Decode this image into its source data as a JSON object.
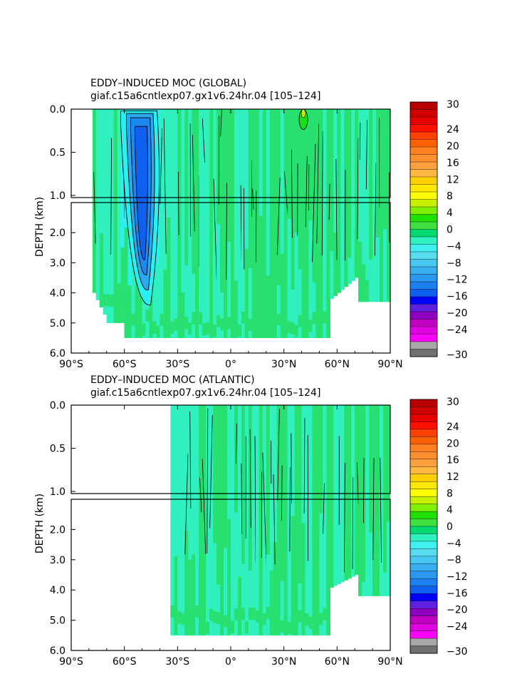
{
  "palette": {
    "deep_neg": [
      "#707070",
      "#a8a8a8",
      "#ff00ff",
      "#e000e0",
      "#c000c0",
      "#9000c0",
      "#6020e0",
      "#0000ff",
      "#1060f0",
      "#1c80f0",
      "#2a98f0",
      "#38b0f0",
      "#48c8f0",
      "#58dcf0",
      "#40f0f0",
      "#30f0c0"
    ],
    "pos": [
      "#00d870",
      "#40e040",
      "#20e000",
      "#80f000",
      "#c8f000",
      "#ffff00",
      "#ffe800",
      "#ffd000",
      "#ffb840",
      "#ffa040",
      "#ff9030",
      "#ff8020",
      "#ff6000",
      "#ff4000",
      "#ff1000",
      "#e80000",
      "#d00000",
      "#b80000"
    ],
    "ocean": {
      "neg4": "#2af0f0",
      "neg2": "#30f0c0",
      "zero": "#30f0b0",
      "pos2": "#28e070",
      "pos4": "#18e018",
      "neg8": "#2aa8f0",
      "neg12": "#1c88f0",
      "neg16": "#1060f0"
    }
  },
  "chart_data": [
    {
      "type": "contour",
      "title": "EDDY–INDUCED MOC (GLOBAL)",
      "subtitle": "giaf.c15a6cntlexp07.gx1v6.24hr.04  [105–124]",
      "ylabel": "DEPTH (km)",
      "x_ticks": [
        "90°S",
        "60°S",
        "30°S",
        "0°",
        "30°N",
        "60°N",
        "90°N"
      ],
      "x_range": [
        -90,
        90
      ],
      "y_ticks_upper": [
        "0.0",
        "0.5",
        "1.0"
      ],
      "y_ticks_lower": [
        "2.0",
        "3.0",
        "4.0",
        "5.0",
        "6.0"
      ],
      "y_range": [
        0,
        6
      ],
      "colorbar_labels": [
        "30",
        "24",
        "20",
        "16",
        "12",
        "8",
        "4",
        "0",
        "−4",
        "−8",
        "−12",
        "−16",
        "−20",
        "−24",
        "−30"
      ],
      "colorbar_range": [
        -30,
        30
      ],
      "field": {
        "mask": "global",
        "features": [
          {
            "lat": -50,
            "depth": 1.2,
            "value": -12
          },
          {
            "lat": -45,
            "depth": 2.5,
            "value": -8
          },
          {
            "lat": 40,
            "depth": 0.1,
            "value": 6
          }
        ]
      }
    },
    {
      "type": "contour",
      "title": "EDDY–INDUCED MOC (ATLANTIC)",
      "subtitle": "giaf.c15a6cntlexp07.gx1v6.24hr.04  [105–124]",
      "ylabel": "DEPTH (km)",
      "x_ticks": [
        "90°S",
        "60°S",
        "30°S",
        "0°",
        "30°N",
        "60°N",
        "90°N"
      ],
      "x_range": [
        -90,
        90
      ],
      "y_ticks_upper": [
        "0.0",
        "0.5",
        "1.0"
      ],
      "y_ticks_lower": [
        "2.0",
        "3.0",
        "4.0",
        "5.0",
        "6.0"
      ],
      "y_range": [
        0,
        6
      ],
      "colorbar_labels": [
        "30",
        "24",
        "20",
        "16",
        "12",
        "8",
        "4",
        "0",
        "−4",
        "−8",
        "−12",
        "−16",
        "−20",
        "−24",
        "−30"
      ],
      "colorbar_range": [
        -30,
        30
      ],
      "field": {
        "mask": "atlantic",
        "features": [
          {
            "lat": 0,
            "depth": 0.5,
            "value": 2
          },
          {
            "lat": 45,
            "depth": 3.0,
            "value": 2
          }
        ]
      }
    }
  ]
}
